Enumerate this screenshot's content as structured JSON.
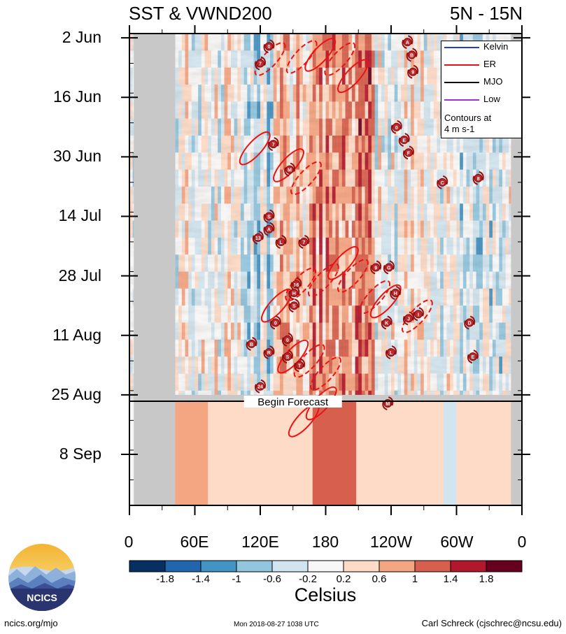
{
  "chart_data": {
    "type": "heatmap",
    "title": "SST & VWND200",
    "region": "5N - 15N",
    "time_labels": [
      "2 Jun",
      "16 Jun",
      "30 Jun",
      "14 Jul",
      "28 Jul",
      "11 Aug",
      "25 Aug",
      "8 Sep"
    ],
    "time_values": [
      0,
      14,
      28,
      42,
      56,
      70,
      84,
      98
    ],
    "time_range": [
      -1,
      110
    ],
    "longitude_labels": [
      "0",
      "60E",
      "120E",
      "180",
      "120W",
      "60W",
      "0"
    ],
    "longitude_values": [
      0,
      60,
      120,
      180,
      240,
      300,
      360
    ],
    "forecast_label": "Begin Forecast",
    "forecast_day": 85.5,
    "land_mask_longitudes": [
      [
        4,
        42
      ],
      [
        350,
        360
      ]
    ],
    "observed_warm_band_longitudes": [
      [
        170,
        220
      ]
    ],
    "colorbar": {
      "title": "Celsius",
      "tick_labels": [
        "-1.8",
        "-1.4",
        "-1",
        "-0.6",
        "-0.2",
        "0.2",
        "0.6",
        "1",
        "1.4",
        "1.8"
      ],
      "colors": [
        "#053061",
        "#2166ac",
        "#4393c3",
        "#92c5de",
        "#d1e5f0",
        "#f7f7f7",
        "#fddbc7",
        "#f4a582",
        "#d6604d",
        "#b2182b",
        "#67001f"
      ]
    },
    "legend": {
      "entries": [
        {
          "label": "Kelvin",
          "color": "#1f3fcf"
        },
        {
          "label": "ER",
          "color": "#ee1111"
        },
        {
          "label": "MJO",
          "color": "#000000"
        },
        {
          "label": "Low",
          "color": "#9933cc"
        }
      ],
      "note_line1": "Contours at",
      "note_line2": "4 m s-1"
    },
    "er_contours": [
      {
        "lon": 129,
        "day": 5,
        "style": "dashed"
      },
      {
        "lon": 158,
        "day": 4.5,
        "style": "dashed"
      },
      {
        "lon": 175,
        "day": 4,
        "style": "solid"
      },
      {
        "lon": 193,
        "day": 5,
        "style": "dashed"
      },
      {
        "lon": 205,
        "day": 9,
        "style": "solid"
      },
      {
        "lon": 115,
        "day": 26,
        "style": "solid"
      },
      {
        "lon": 146,
        "day": 30,
        "style": "solid"
      },
      {
        "lon": 162,
        "day": 33,
        "style": "dashed"
      },
      {
        "lon": 135,
        "day": 63,
        "style": "solid"
      },
      {
        "lon": 157,
        "day": 58,
        "style": "dashed"
      },
      {
        "lon": 178,
        "day": 57,
        "style": "dashed"
      },
      {
        "lon": 196,
        "day": 53,
        "style": "solid"
      },
      {
        "lon": 205,
        "day": 56,
        "style": "dashed"
      },
      {
        "lon": 225,
        "day": 61,
        "style": "dashed"
      },
      {
        "lon": 235,
        "day": 62,
        "style": "solid"
      },
      {
        "lon": 264,
        "day": 65.5,
        "style": "dashed"
      },
      {
        "lon": 150,
        "day": 75,
        "style": "solid"
      },
      {
        "lon": 165,
        "day": 76,
        "style": "dashed"
      },
      {
        "lon": 180,
        "day": 79,
        "style": "dashed"
      },
      {
        "lon": 176,
        "day": 86,
        "style": "solid"
      },
      {
        "lon": 160,
        "day": 90,
        "style": "solid"
      }
    ],
    "storm_markers": [
      {
        "label": "0",
        "lon": 128,
        "day": 2
      },
      {
        "label": "7",
        "lon": 120,
        "day": 6
      },
      {
        "label": "A",
        "lon": 255,
        "day": 1
      },
      {
        "label": "B",
        "lon": 259,
        "day": 4
      },
      {
        "label": "9",
        "lon": 260,
        "day": 8
      },
      {
        "label": "0",
        "lon": 245,
        "day": 21
      },
      {
        "label": "E",
        "lon": 252,
        "day": 24
      },
      {
        "label": "F",
        "lon": 256,
        "day": 27
      },
      {
        "label": "7",
        "lon": 132,
        "day": 25
      },
      {
        "label": "M",
        "lon": 147,
        "day": 31
      },
      {
        "label": "C",
        "lon": 287,
        "day": 34
      },
      {
        "label": "8",
        "lon": 320,
        "day": 33
      },
      {
        "label": "S",
        "lon": 128,
        "day": 42
      },
      {
        "label": "A",
        "lon": 128,
        "day": 45
      },
      {
        "label": "13",
        "lon": 118,
        "day": 47
      },
      {
        "label": "L",
        "lon": 139,
        "day": 48
      },
      {
        "label": "7",
        "lon": 160,
        "day": 48
      },
      {
        "label": "9",
        "lon": 226,
        "day": 54
      },
      {
        "label": "G",
        "lon": 238,
        "day": 54
      },
      {
        "label": "16",
        "lon": 153,
        "day": 58
      },
      {
        "label": "H",
        "lon": 151,
        "day": 60
      },
      {
        "label": "S",
        "lon": 151,
        "day": 63
      },
      {
        "label": "H",
        "lon": 244,
        "day": 60
      },
      {
        "label": "0",
        "lon": 134,
        "day": 67
      },
      {
        "label": "K",
        "lon": 236,
        "day": 67
      },
      {
        "label": "J",
        "lon": 256,
        "day": 66
      },
      {
        "label": "I",
        "lon": 265,
        "day": 65
      },
      {
        "label": "D",
        "lon": 312,
        "day": 67
      },
      {
        "label": "B",
        "lon": 112,
        "day": 72
      },
      {
        "label": "R",
        "lon": 128,
        "day": 74
      },
      {
        "label": "0",
        "lon": 145,
        "day": 71
      },
      {
        "label": "S",
        "lon": 145,
        "day": 75
      },
      {
        "label": "T",
        "lon": 156,
        "day": 77
      },
      {
        "label": "L",
        "lon": 240,
        "day": 74
      },
      {
        "label": "E",
        "lon": 315,
        "day": 75
      },
      {
        "label": "24",
        "lon": 120,
        "day": 82
      },
      {
        "label": "M",
        "lon": 237,
        "day": 86
      }
    ]
  },
  "footer": {
    "logo_text": "NCICS",
    "url": "ncics.org/mjo",
    "timestamp": "Mon 2018-08-27 1038 UTC",
    "author": "Carl Schreck (cjschrec@ncsu.edu)"
  }
}
